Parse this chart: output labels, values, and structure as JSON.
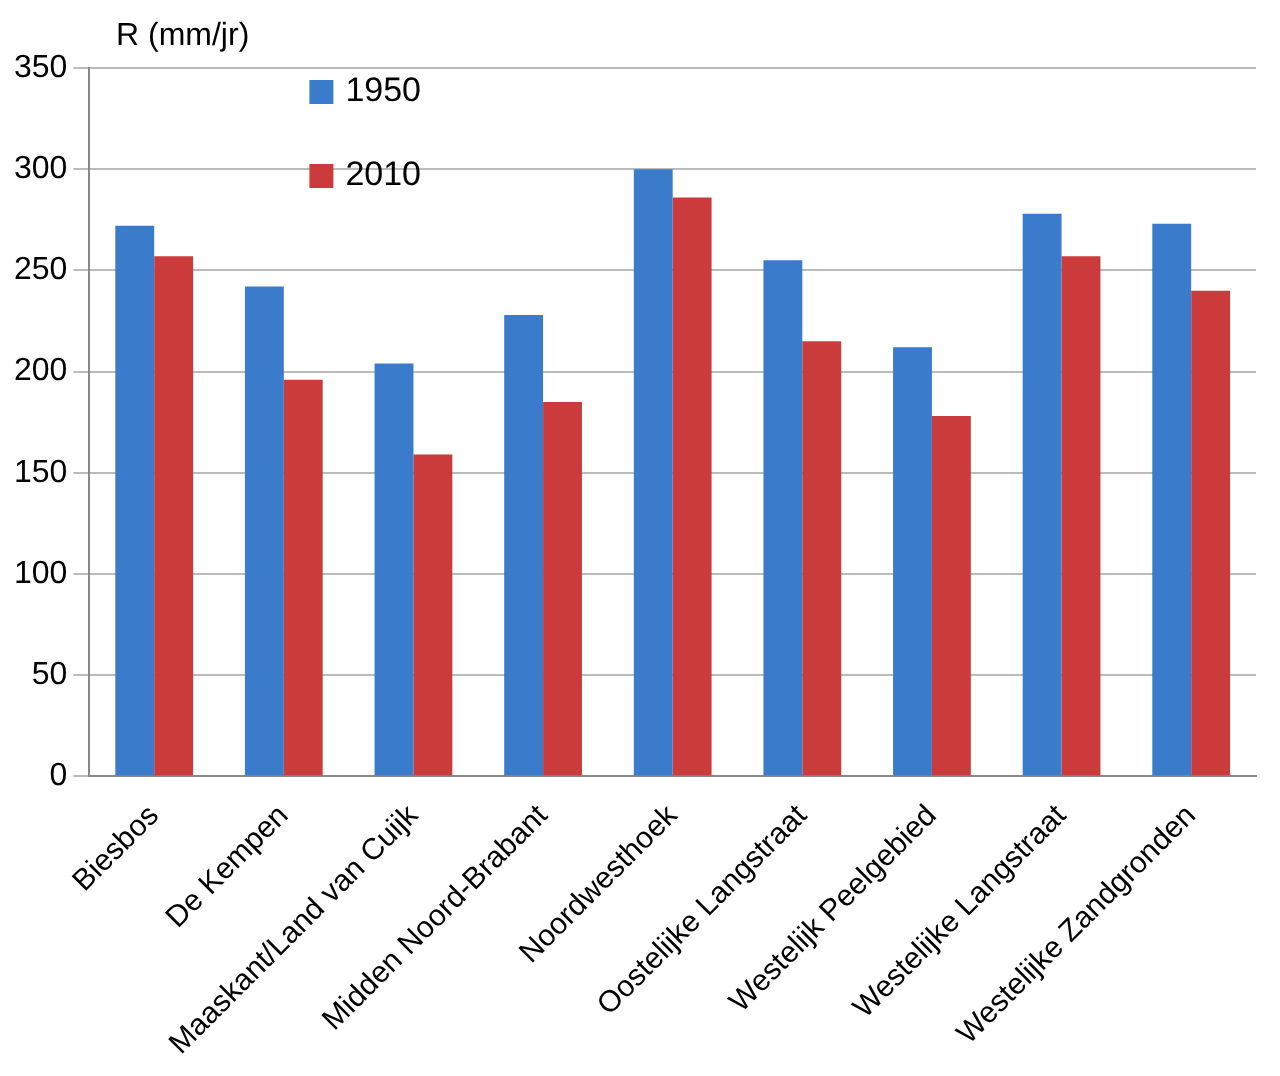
{
  "chart_data": {
    "type": "bar",
    "ylabel": "R (mm/jr)",
    "categories": [
      "Biesbos",
      "De Kempen",
      "Maaskant/Land van Cuijk",
      "Midden Noord-Brabant",
      "Noordwesthoek",
      "Oostelijke Langstraat",
      "Westelijk Peelgebied",
      "Westelijke Langstraat",
      "Westelijke Zandgronden"
    ],
    "series": [
      {
        "name": "1950",
        "color": "#3b7bcc",
        "values": [
          272,
          242,
          204,
          228,
          300,
          255,
          212,
          278,
          273
        ]
      },
      {
        "name": "2010",
        "color": "#cc3b3b",
        "values": [
          257,
          196,
          159,
          185,
          286,
          215,
          178,
          257,
          240
        ]
      }
    ],
    "ylim": [
      0,
      350
    ],
    "yticks": [
      0,
      50,
      100,
      150,
      200,
      250,
      300,
      350
    ],
    "grid": "y",
    "legend": "top left"
  }
}
